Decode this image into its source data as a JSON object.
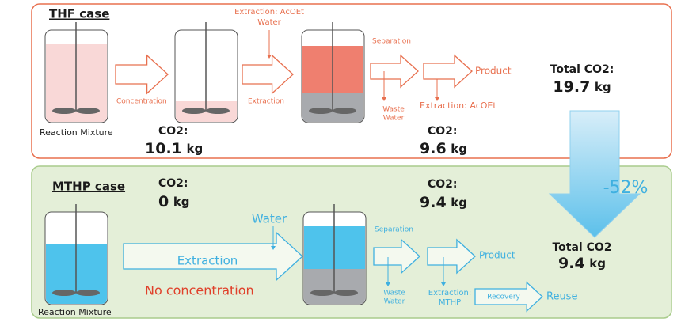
{
  "thf_case": {
    "title": "THF case",
    "reaction_mixture": "Reaction Mixture",
    "concentration": "Concentration",
    "extraction_solvent": [
      "Extraction: AcOEt",
      "Water"
    ],
    "extraction": "Extraction",
    "separation": "Separation",
    "waste_water": [
      "Waste",
      "Water"
    ],
    "product": "Product",
    "extraction_after": "Extraction: AcOEt",
    "co2_concentration": {
      "label": "CO2:",
      "value": 10.1,
      "unit": "kg"
    },
    "co2_extraction": {
      "label": "CO2:",
      "value": 9.6,
      "unit": "kg"
    },
    "total": {
      "label": "Total CO2:",
      "value": 19.7,
      "unit": "kg"
    }
  },
  "mthp_case": {
    "title": "MTHP case",
    "reaction_mixture": "Reaction Mixture",
    "water": "Water",
    "extraction": "Extraction",
    "no_concentration": "No concentration",
    "separation": "Separation",
    "waste_water": [
      "Waste",
      "Water"
    ],
    "product": "Product",
    "extraction_after": [
      "Extraction:",
      "MTHP"
    ],
    "recovery": "Recovery",
    "reuse": "Reuse",
    "co2_concentration": {
      "label": "CO2:",
      "value": 0,
      "unit": "kg"
    },
    "co2_extraction": {
      "label": "CO2:",
      "value": 9.4,
      "unit": "kg"
    },
    "total": {
      "label": "Total CO2",
      "value": 9.4,
      "unit": "kg"
    }
  },
  "reduction": "-52%"
}
